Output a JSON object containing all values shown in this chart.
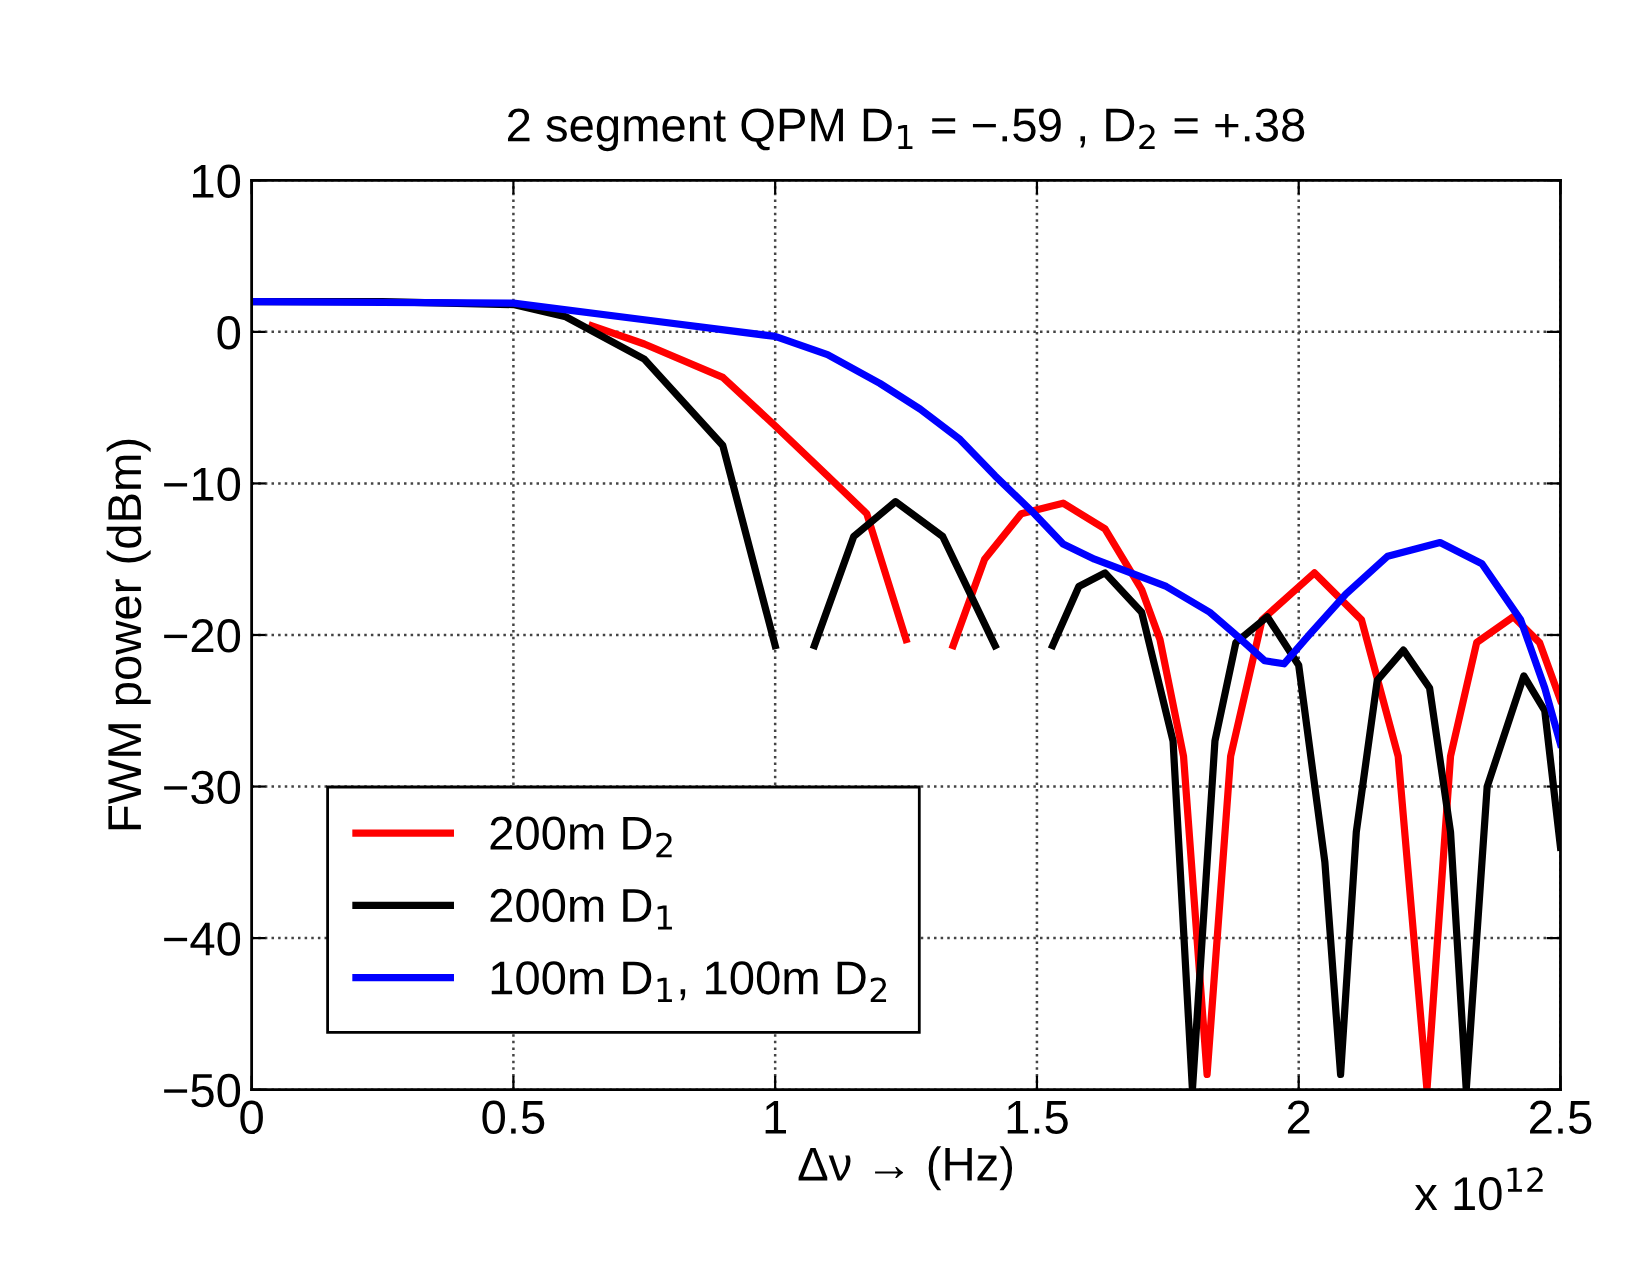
{
  "chart_data": {
    "type": "line",
    "title": "2 segment QPM D$_{1}$ = −.59 , D$_{2}$ = +.38",
    "xlabel": "Δν → (Hz)",
    "ylabel": "FWM power (dBm)",
    "annotations": [
      "x 10$^{12}$"
    ],
    "xlim": [
      0,
      2.5
    ],
    "xticks": [
      0,
      0.5,
      1,
      1.5,
      2,
      2.5
    ],
    "ylim": [
      -50,
      10
    ],
    "yticks": [
      10,
      0,
      {
        "value": -10,
        "label": "−10"
      },
      {
        "value": -20,
        "label": "−20"
      },
      {
        "value": -30,
        "label": "−30"
      },
      {
        "value": -40,
        "label": "−40"
      },
      {
        "value": -50,
        "label": "−50"
      }
    ],
    "grid": true,
    "legend": "bottom left",
    "line_style": "solid",
    "marker": "none",
    "series": [
      {
        "name": "200m D$_{2}$",
        "color": "#ff0000",
        "x": [
          0.65,
          0.75,
          0.9,
          1.0,
          1.1,
          1.175,
          1.25,
          1.27,
          1.34,
          1.4,
          1.47,
          1.55,
          1.63,
          1.7,
          1.735,
          1.78,
          1.825,
          1.87,
          1.93,
          2.03,
          2.12,
          2.19,
          2.245,
          2.29,
          2.34,
          2.41,
          2.46,
          2.5
        ],
        "values": [
          0.4,
          -0.8,
          -3,
          -6.2,
          -9.5,
          -12,
          -20.3,
          null,
          -20.7,
          -15,
          -12,
          -11.3,
          -13,
          -17,
          -20.3,
          -28,
          -49,
          -28,
          -19,
          -15.9,
          -19,
          -28,
          -50,
          -28,
          -20.5,
          -18.8,
          -20.5,
          -24.3
        ]
      },
      {
        "name": "200m D$_{1}$",
        "color": "#000000",
        "x": [
          0,
          0.25,
          0.5,
          0.6,
          0.75,
          0.9,
          1.0,
          1.03,
          1.075,
          1.15,
          1.23,
          1.32,
          1.42,
          1.47,
          1.53,
          1.58,
          1.63,
          1.7,
          1.76,
          1.797,
          1.84,
          1.88,
          1.94,
          2.0,
          2.05,
          2.08,
          2.11,
          2.15,
          2.2,
          2.25,
          2.29,
          2.32,
          2.36,
          2.43,
          2.47,
          2.5
        ],
        "values": [
          2,
          2,
          1.8,
          1,
          -1.8,
          -7.5,
          -20.7,
          null,
          -20.7,
          -13.5,
          -11.2,
          -13.5,
          -20.7,
          null,
          -20.7,
          -16.8,
          -15.9,
          -18.5,
          -27,
          -50,
          -27,
          -20.5,
          -18.8,
          -22,
          -35,
          -49,
          -33,
          -23,
          -21,
          -23.5,
          -33,
          -50,
          -30,
          -22.7,
          -25,
          -34
        ]
      },
      {
        "name": "100m D$_{1}$, 100m D$_{2}$",
        "color": "#0000ff",
        "x": [
          0,
          0.5,
          0.75,
          1.0,
          1.1,
          1.2,
          1.277,
          1.353,
          1.42,
          1.495,
          1.55,
          1.61,
          1.747,
          1.83,
          1.877,
          1.935,
          1.972,
          2.02,
          2.09,
          2.17,
          2.27,
          2.35,
          2.424,
          2.47,
          2.5
        ],
        "values": [
          2,
          1.9,
          0.8,
          -0.3,
          -1.5,
          -3.4,
          -5.1,
          -7.1,
          -9.5,
          -12,
          -14,
          -15,
          -16.8,
          -18.5,
          -19.9,
          -21.7,
          -21.9,
          -20,
          -17.3,
          -14.8,
          -13.9,
          -15.3,
          -19,
          -23.5,
          -27.2
        ]
      }
    ]
  }
}
